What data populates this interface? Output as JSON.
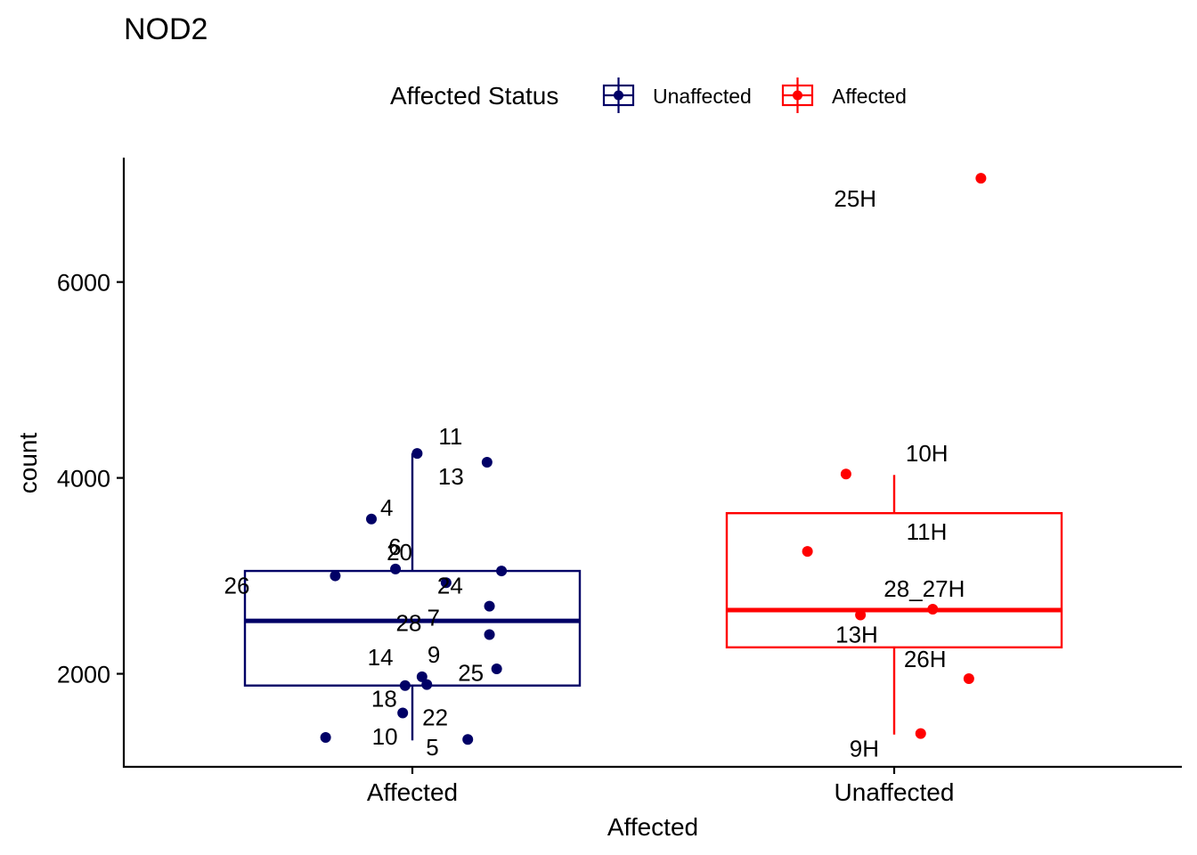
{
  "chart_data": {
    "type": "box",
    "title": "NOD2",
    "xlabel": "Affected",
    "ylabel": "count",
    "ylim": [
      1050,
      7270
    ],
    "yticks": [
      2000,
      4000,
      6000
    ],
    "ytick_labels": [
      "2000",
      "4000",
      "6000"
    ],
    "categories": [
      "Affected",
      "Unaffected"
    ],
    "legend": {
      "title": "Affected Status",
      "position": "top",
      "entries": [
        {
          "label": "Unaffected",
          "color": "#000066"
        },
        {
          "label": "Affected",
          "color": "#ff0000"
        }
      ]
    },
    "series": [
      {
        "name": "Unaffected",
        "category": "Affected",
        "color": "#000066",
        "box": {
          "whisker_low": 1320,
          "q1": 1880,
          "median": 2540,
          "q3": 3050,
          "whisker_high": 4250
        },
        "points": [
          {
            "label": "11",
            "x_offset": 0.02,
            "y": 4250
          },
          {
            "label": "13",
            "x_offset": 0.31,
            "y": 4160
          },
          {
            "label": "4",
            "x_offset": -0.17,
            "y": 3580
          },
          {
            "label": "6",
            "x_offset": -0.07,
            "y": 3070
          },
          {
            "label": "20",
            "x_offset": 0.37,
            "y": 3050
          },
          {
            "label": "26",
            "x_offset": -0.32,
            "y": 3000
          },
          {
            "label": "24",
            "x_offset": 0.14,
            "y": 2930
          },
          {
            "label": "28",
            "x_offset": 0.32,
            "y": 2690
          },
          {
            "label": "7",
            "x_offset": 0.32,
            "y": 2400
          },
          {
            "label": "14",
            "x_offset": 0.35,
            "y": 2050
          },
          {
            "label": "9",
            "x_offset": 0.04,
            "y": 1970
          },
          {
            "label": "25",
            "x_offset": 0.06,
            "y": 1890
          },
          {
            "label": "18",
            "x_offset": -0.03,
            "y": 1880
          },
          {
            "label": "22",
            "x_offset": -0.04,
            "y": 1600
          },
          {
            "label": "10",
            "x_offset": -0.36,
            "y": 1350
          },
          {
            "label": "5",
            "x_offset": 0.23,
            "y": 1330
          }
        ]
      },
      {
        "name": "Affected",
        "category": "Unaffected",
        "color": "#ff0000",
        "box": {
          "whisker_low": 1380,
          "q1": 2270,
          "median": 2650,
          "q3": 3640,
          "whisker_high": 4030
        },
        "points": [
          {
            "label": "25H",
            "x_offset": 0.36,
            "y": 7060
          },
          {
            "label": "10H",
            "x_offset": -0.2,
            "y": 4040
          },
          {
            "label": "11H",
            "x_offset": -0.36,
            "y": 3250
          },
          {
            "label": "28_27H",
            "x_offset": 0.16,
            "y": 2660
          },
          {
            "label": "13H",
            "x_offset": -0.14,
            "y": 2600
          },
          {
            "label": "26H",
            "x_offset": 0.31,
            "y": 1950
          },
          {
            "label": "9H",
            "x_offset": 0.11,
            "y": 1390
          }
        ]
      }
    ]
  }
}
